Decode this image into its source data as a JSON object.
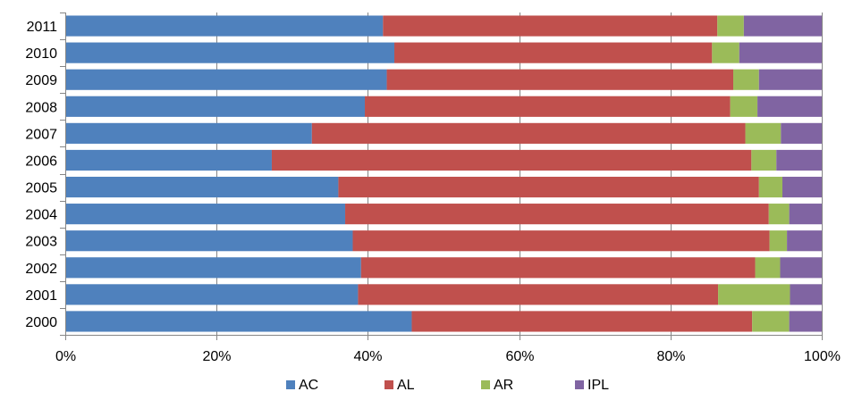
{
  "chart_data": {
    "type": "bar",
    "orientation": "horizontal",
    "stacked": true,
    "percent_stacked": true,
    "title": "",
    "xlabel": "",
    "ylabel": "",
    "categories": [
      "2000",
      "2001",
      "2002",
      "2003",
      "2004",
      "2005",
      "2006",
      "2007",
      "2008",
      "2009",
      "2010",
      "2011"
    ],
    "series": [
      {
        "name": "AC",
        "color": "#4F81BD",
        "values": [
          45.8,
          38.7,
          39.1,
          38.0,
          37.0,
          36.1,
          27.3,
          32.6,
          39.6,
          42.5,
          43.5,
          42.0
        ]
      },
      {
        "name": "AL",
        "color": "#C0504D",
        "values": [
          45.0,
          47.6,
          52.1,
          55.1,
          56.0,
          55.6,
          63.4,
          57.3,
          48.3,
          45.8,
          42.0,
          44.2
        ]
      },
      {
        "name": "AR",
        "color": "#9BBB59",
        "values": [
          4.9,
          9.5,
          3.3,
          2.3,
          2.7,
          3.1,
          3.3,
          4.7,
          3.6,
          3.4,
          3.6,
          3.5
        ]
      },
      {
        "name": "IPL",
        "color": "#8064A2",
        "values": [
          4.3,
          4.2,
          5.5,
          4.6,
          4.3,
          5.2,
          6.0,
          5.4,
          8.5,
          8.3,
          10.9,
          10.3
        ]
      }
    ],
    "x_ticks": [
      "0%",
      "20%",
      "40%",
      "60%",
      "80%",
      "100%"
    ],
    "xlim": [
      0,
      100
    ],
    "grid": true,
    "legend_position": "bottom"
  }
}
